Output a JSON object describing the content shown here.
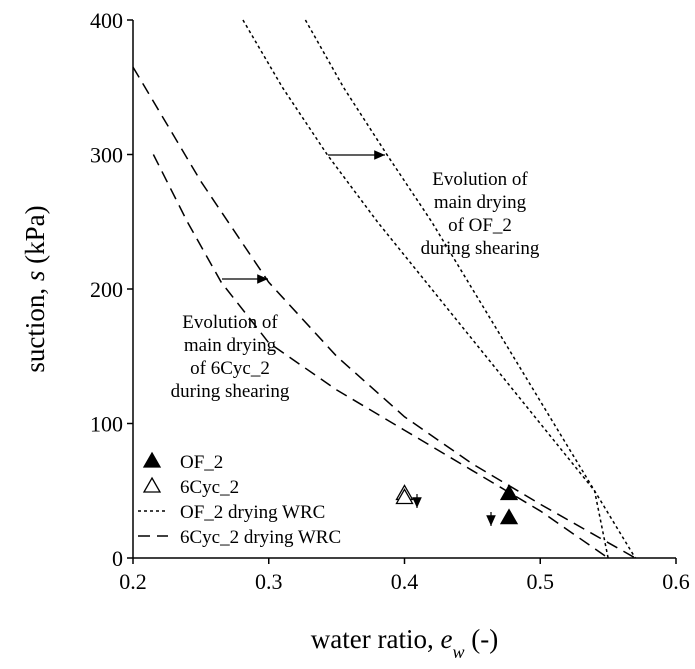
{
  "chart_data": {
    "type": "scatter-line",
    "xlabel": [
      "water ratio, ",
      "e",
      "w",
      " (-)"
    ],
    "ylabel": [
      "suction, ",
      "s",
      " (kPa)"
    ],
    "xlim": [
      0.2,
      0.6
    ],
    "xticks": [
      0.2,
      0.3,
      0.4,
      0.5,
      0.6
    ],
    "ylim": [
      0,
      400
    ],
    "yticks": [
      0,
      100,
      200,
      300,
      400
    ],
    "series": [
      {
        "name": "OF_2",
        "marker": "filled-triangle",
        "color": "#000000",
        "x": [
          0.477,
          0.477
        ],
        "values": [
          48,
          30
        ]
      },
      {
        "name": "6Cyc_2",
        "marker": "open-triangle",
        "color": "#000000",
        "x": [
          0.4,
          0.4
        ],
        "values": [
          48,
          45
        ]
      },
      {
        "name": "OF_2 drying WRC",
        "dash": "3,3",
        "color": "#000000",
        "x": [
          0.281,
          0.31,
          0.343,
          0.38,
          0.42,
          0.46,
          0.5,
          0.54,
          0.57
        ],
        "values": [
          400,
          350,
          300,
          250,
          200,
          150,
          100,
          50,
          0
        ]
      },
      {
        "dash": "3,3",
        "color": "#000000",
        "x": [
          0.327,
          0.355,
          0.387,
          0.42,
          0.45,
          0.48,
          0.51,
          0.54,
          0.55
        ],
        "values": [
          400,
          350,
          300,
          250,
          200,
          150,
          100,
          50,
          0
        ]
      },
      {
        "name": "6Cyc_2 drying WRC",
        "dash": "12,7",
        "color": "#000000",
        "x": [
          0.2,
          0.25,
          0.3,
          0.35,
          0.4,
          0.45,
          0.5,
          0.57
        ],
        "values": [
          365,
          280,
          205,
          150,
          105,
          70,
          40,
          0
        ]
      },
      {
        "dash": "12,7",
        "color": "#000000",
        "x": [
          0.215,
          0.24,
          0.265,
          0.3,
          0.35,
          0.4,
          0.45,
          0.5,
          0.55
        ],
        "values": [
          300,
          250,
          205,
          160,
          125,
          95,
          65,
          35,
          0
        ]
      }
    ],
    "annotations": [
      [
        "Evolution of",
        "main drying",
        "of OF_2",
        "during shearing"
      ],
      [
        "Evolution of",
        "main drying",
        "of 6Cyc_2",
        "during shearing"
      ]
    ]
  }
}
